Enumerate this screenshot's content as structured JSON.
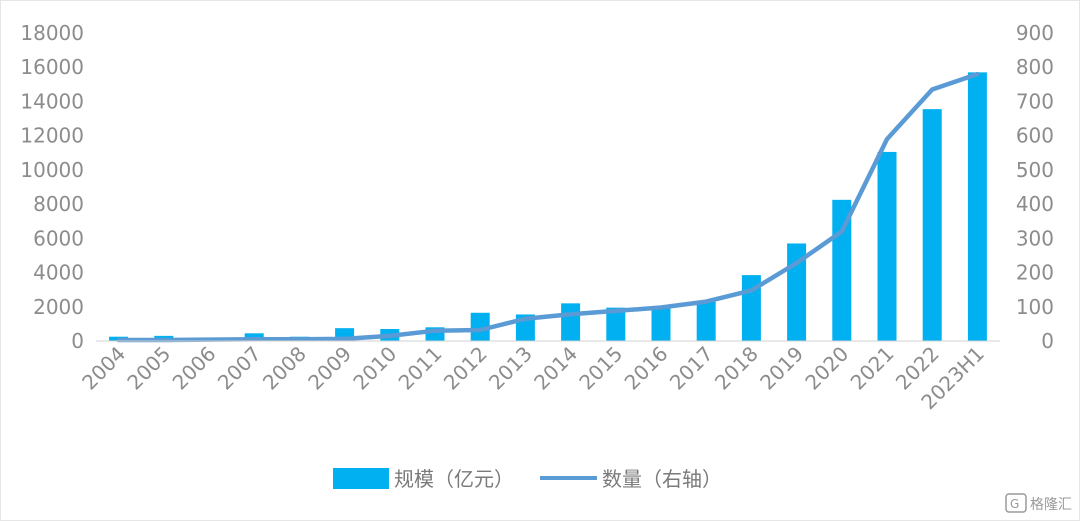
{
  "chart_data": {
    "type": "bar",
    "categories": [
      "2004",
      "2005",
      "2006",
      "2007",
      "2008",
      "2009",
      "2010",
      "2011",
      "2012",
      "2013",
      "2014",
      "2015",
      "2016",
      "2017",
      "2018",
      "2019",
      "2020",
      "2021",
      "2022",
      "2023H1"
    ],
    "series": [
      {
        "name": "规模（亿元）",
        "type": "bar",
        "axis": "left",
        "color": "#00b0f0",
        "values": [
          250,
          300,
          200,
          450,
          250,
          750,
          700,
          800,
          1650,
          1550,
          2200,
          1950,
          2000,
          2300,
          3850,
          5700,
          8250,
          11050,
          13550,
          15700
        ]
      },
      {
        "name": "数量（右轴）",
        "type": "line",
        "axis": "right",
        "color": "#5b9bd5",
        "values": [
          3,
          3,
          4,
          5,
          5,
          6,
          15,
          30,
          32,
          65,
          78,
          88,
          98,
          115,
          148,
          228,
          320,
          590,
          735,
          780
        ]
      }
    ],
    "y_left": {
      "min": 0,
      "max": 18000,
      "ticks": [
        "0",
        "2000",
        "4000",
        "6000",
        "8000",
        "10000",
        "12000",
        "14000",
        "16000",
        "18000"
      ]
    },
    "y_right": {
      "min": 0,
      "max": 900,
      "ticks": [
        "0",
        "100",
        "200",
        "300",
        "400",
        "500",
        "600",
        "700",
        "800",
        "900"
      ]
    },
    "grid": false,
    "legend_position": "bottom"
  },
  "legend": {
    "bar_label": "规模（亿元）",
    "line_label": "数量（右轴）"
  },
  "watermark": {
    "text": "格隆汇"
  }
}
